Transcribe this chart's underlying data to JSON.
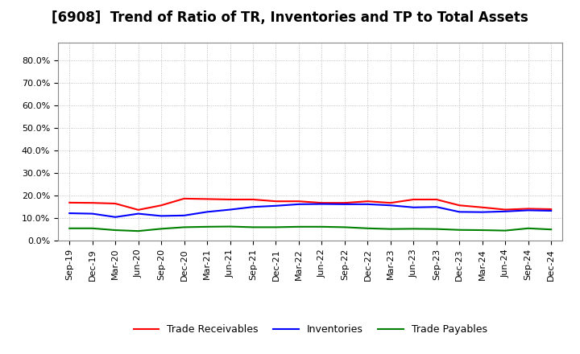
{
  "title": "[6908]  Trend of Ratio of TR, Inventories and TP to Total Assets",
  "xlabel": "",
  "ylabel": "",
  "ylim": [
    0.0,
    0.88
  ],
  "yticks": [
    0.0,
    0.1,
    0.2,
    0.3,
    0.4,
    0.5,
    0.6,
    0.7,
    0.8
  ],
  "x_labels": [
    "Sep-19",
    "Dec-19",
    "Mar-20",
    "Jun-20",
    "Sep-20",
    "Dec-20",
    "Mar-21",
    "Jun-21",
    "Sep-21",
    "Dec-21",
    "Mar-22",
    "Jun-22",
    "Sep-22",
    "Dec-22",
    "Mar-23",
    "Jun-23",
    "Sep-23",
    "Dec-23",
    "Mar-24",
    "Jun-24",
    "Sep-24",
    "Dec-24"
  ],
  "trade_receivables": [
    0.169,
    0.168,
    0.165,
    0.137,
    0.157,
    0.187,
    0.185,
    0.183,
    0.183,
    0.175,
    0.175,
    0.168,
    0.168,
    0.175,
    0.168,
    0.183,
    0.183,
    0.157,
    0.148,
    0.138,
    0.142,
    0.14
  ],
  "inventories": [
    0.122,
    0.12,
    0.105,
    0.12,
    0.11,
    0.112,
    0.128,
    0.138,
    0.15,
    0.155,
    0.162,
    0.163,
    0.162,
    0.162,
    0.157,
    0.148,
    0.15,
    0.128,
    0.127,
    0.13,
    0.135,
    0.133
  ],
  "trade_payables": [
    0.055,
    0.055,
    0.047,
    0.043,
    0.053,
    0.06,
    0.062,
    0.063,
    0.06,
    0.06,
    0.062,
    0.062,
    0.06,
    0.055,
    0.052,
    0.053,
    0.052,
    0.048,
    0.047,
    0.045,
    0.055,
    0.05
  ],
  "tr_color": "#ff0000",
  "inv_color": "#0000ff",
  "tp_color": "#008000",
  "background_color": "#ffffff",
  "grid_color": "#b0b0b0",
  "title_fontsize": 12,
  "tick_fontsize": 8,
  "legend_fontsize": 9
}
